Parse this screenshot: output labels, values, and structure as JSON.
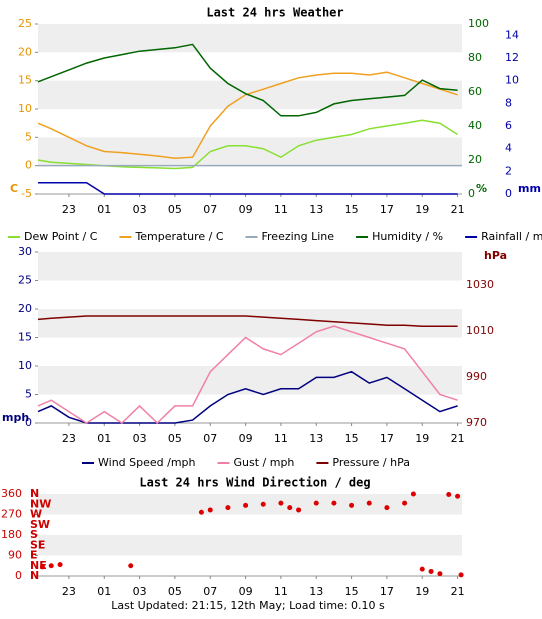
{
  "chart_data": [
    {
      "type": "line",
      "title": "Last 24 hrs Weather",
      "xlim": [
        21.25,
        45.25
      ],
      "xticks": [
        {
          "value": 23,
          "label": "23"
        },
        {
          "value": 25,
          "label": "01"
        },
        {
          "value": 27,
          "label": "03"
        },
        {
          "value": 29,
          "label": "05"
        },
        {
          "value": 31,
          "label": "07"
        },
        {
          "value": 33,
          "label": "09"
        },
        {
          "value": 35,
          "label": "11"
        },
        {
          "value": 37,
          "label": "13"
        },
        {
          "value": 39,
          "label": "15"
        },
        {
          "value": 41,
          "label": "17"
        },
        {
          "value": 43,
          "label": "19"
        },
        {
          "value": 45,
          "label": "21"
        }
      ],
      "ylim": [
        -5,
        25
      ],
      "yticks": [
        -5,
        0,
        5,
        10,
        15,
        20,
        25
      ],
      "y_label": "C",
      "y2lim": [
        0,
        100
      ],
      "y2ticks": [
        0,
        20,
        40,
        60,
        80,
        100
      ],
      "y2_label": "%",
      "y3lim": [
        0,
        15
      ],
      "y3ticks": [
        0,
        2,
        4,
        6,
        8,
        10,
        12,
        14
      ],
      "y3_label": "mm",
      "axis_colors": {
        "y": "#e69500",
        "y2": "#006600",
        "y3": "#0000aa"
      },
      "grid": "bands",
      "x": [
        21.25,
        22,
        23,
        24,
        25,
        26,
        27,
        28,
        29,
        30,
        31,
        32,
        33,
        34,
        35,
        36,
        37,
        38,
        39,
        40,
        41,
        42,
        43,
        44,
        45
      ],
      "series": [
        {
          "name": "Dew Point / C",
          "color": "#88e030",
          "values": [
            1,
            0.6,
            0.4,
            0.2,
            0,
            -0.2,
            -0.3,
            -0.4,
            -0.5,
            -0.3,
            2.5,
            3.5,
            3.5,
            3,
            1.5,
            3.5,
            4.5,
            5,
            5.5,
            6.5,
            7,
            7.5,
            8,
            7.5,
            5.5
          ]
        },
        {
          "name": "Temperature / C",
          "color": "#f0a020",
          "values": [
            7.5,
            6.5,
            5,
            3.5,
            2.5,
            2.3,
            2,
            1.7,
            1.3,
            1.5,
            7,
            10.5,
            12.5,
            13.5,
            14.5,
            15.5,
            16,
            16.3,
            16.3,
            16,
            16.5,
            15.5,
            14.5,
            13.5,
            12.5
          ]
        },
        {
          "name": "Freezing Line",
          "color": "#99aabb",
          "value": 0
        },
        {
          "name": "Humidity / %",
          "color": "#006600",
          "axis": "y2",
          "values": [
            66,
            69,
            73,
            77,
            80,
            82,
            84,
            85,
            86,
            88,
            74,
            65,
            59,
            55,
            46,
            46,
            48,
            53,
            55,
            56,
            57,
            58,
            67,
            62,
            61
          ]
        },
        {
          "name": "Rainfall / mm",
          "color": "#0000aa",
          "axis": "y3",
          "values": [
            1,
            1,
            1,
            1,
            0,
            0,
            0,
            0,
            0,
            0,
            0,
            0,
            0,
            0,
            0,
            0,
            0,
            0,
            0,
            0,
            0,
            0,
            0,
            0,
            0
          ]
        }
      ]
    },
    {
      "type": "line",
      "xlim": [
        21.25,
        45.25
      ],
      "xticks": [
        {
          "value": 23,
          "label": "23"
        },
        {
          "value": 25,
          "label": "01"
        },
        {
          "value": 27,
          "label": "03"
        },
        {
          "value": 29,
          "label": "05"
        },
        {
          "value": 31,
          "label": "07"
        },
        {
          "value": 33,
          "label": "09"
        },
        {
          "value": 35,
          "label": "11"
        },
        {
          "value": 37,
          "label": "13"
        },
        {
          "value": 39,
          "label": "15"
        },
        {
          "value": 41,
          "label": "17"
        },
        {
          "value": 43,
          "label": "19"
        },
        {
          "value": 45,
          "label": "21"
        }
      ],
      "ylim": [
        0,
        30
      ],
      "yticks": [
        0,
        5,
        10,
        15,
        20,
        25,
        30
      ],
      "y_label": "mph",
      "y2lim": [
        970,
        1044.3
      ],
      "y2ticks": [
        970,
        990,
        1010,
        1030
      ],
      "y2_label": "hPa",
      "axis_colors": {
        "y": "#000080",
        "y2": "#800000"
      },
      "grid": "bands",
      "x": [
        21.25,
        22,
        23,
        24,
        25,
        26,
        27,
        28,
        29,
        30,
        31,
        32,
        33,
        34,
        35,
        36,
        37,
        38,
        39,
        40,
        41,
        42,
        43,
        44,
        45
      ],
      "series": [
        {
          "name": "Wind Speed /mph",
          "color": "#000080",
          "values": [
            2,
            3,
            1,
            0,
            0,
            0,
            0,
            0,
            0,
            0.5,
            3,
            5,
            6,
            5,
            6,
            6,
            8,
            8,
            9,
            7,
            8,
            6,
            4,
            2,
            3
          ]
        },
        {
          "name": "Gust / mph",
          "color": "#f080a8",
          "values": [
            3,
            4,
            2,
            0,
            2,
            0,
            3,
            0,
            3,
            3,
            9,
            12,
            15,
            13,
            12,
            14,
            16,
            17,
            16,
            15,
            14,
            13,
            9,
            5,
            4
          ]
        },
        {
          "name": "Pressure / hPa",
          "color": "#800000",
          "axis": "y2",
          "values": [
            1015,
            1015.5,
            1016,
            1016.5,
            1016.5,
            1016.5,
            1016.5,
            1016.5,
            1016.5,
            1016.5,
            1016.5,
            1016.5,
            1016.5,
            1016,
            1015.5,
            1015,
            1014.5,
            1014,
            1013.5,
            1013,
            1012.5,
            1012.5,
            1012,
            1012,
            1012
          ]
        }
      ]
    },
    {
      "type": "scatter",
      "title": "Last 24 hrs Wind Direction / deg",
      "xlim": [
        21.25,
        45.25
      ],
      "xticks": [
        {
          "value": 23,
          "label": "23"
        },
        {
          "value": 25,
          "label": "01"
        },
        {
          "value": 27,
          "label": "03"
        },
        {
          "value": 29,
          "label": "05"
        },
        {
          "value": 31,
          "label": "07"
        },
        {
          "value": 33,
          "label": "09"
        },
        {
          "value": 35,
          "label": "11"
        },
        {
          "value": 37,
          "label": "13"
        },
        {
          "value": 39,
          "label": "15"
        },
        {
          "value": 41,
          "label": "17"
        },
        {
          "value": 43,
          "label": "19"
        },
        {
          "value": 45,
          "label": "21"
        }
      ],
      "ylim": [
        0,
        360
      ],
      "yticks": [
        0,
        90,
        180,
        270,
        360
      ],
      "direction_ticks": [
        {
          "value": 0,
          "label": "N"
        },
        {
          "value": 45,
          "label": "NE"
        },
        {
          "value": 90,
          "label": "E"
        },
        {
          "value": 135,
          "label": "SE"
        },
        {
          "value": 180,
          "label": "S"
        },
        {
          "value": 225,
          "label": "SW"
        },
        {
          "value": 270,
          "label": "W"
        },
        {
          "value": 315,
          "label": "NW"
        },
        {
          "value": 360,
          "label": "N"
        }
      ],
      "axis_colors": {
        "y": "#cc0000"
      },
      "grid": "bands",
      "color": "#dd0000",
      "x": [
        21.5,
        22,
        22.5,
        26.5,
        30.5,
        31,
        32,
        33,
        34,
        35,
        35.5,
        36,
        37,
        38,
        39,
        40,
        41,
        42,
        42.5,
        43,
        43.5,
        44,
        44.5,
        45,
        45.2
      ],
      "values": [
        40,
        45,
        50,
        45,
        280,
        290,
        300,
        310,
        315,
        320,
        300,
        290,
        320,
        320,
        310,
        320,
        300,
        320,
        360,
        30,
        20,
        10,
        358,
        350,
        5
      ]
    }
  ],
  "footer": "Last Updated: 21:15, 12th May; Load time: 0.10 s"
}
